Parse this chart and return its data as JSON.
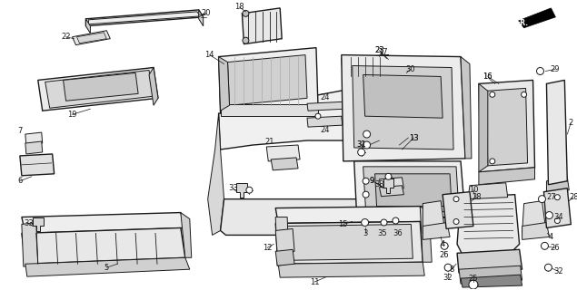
{
  "bg_color": "#ffffff",
  "line_color": "#1a1a1a",
  "fig_width": 6.35,
  "fig_height": 3.2,
  "dpi": 100
}
